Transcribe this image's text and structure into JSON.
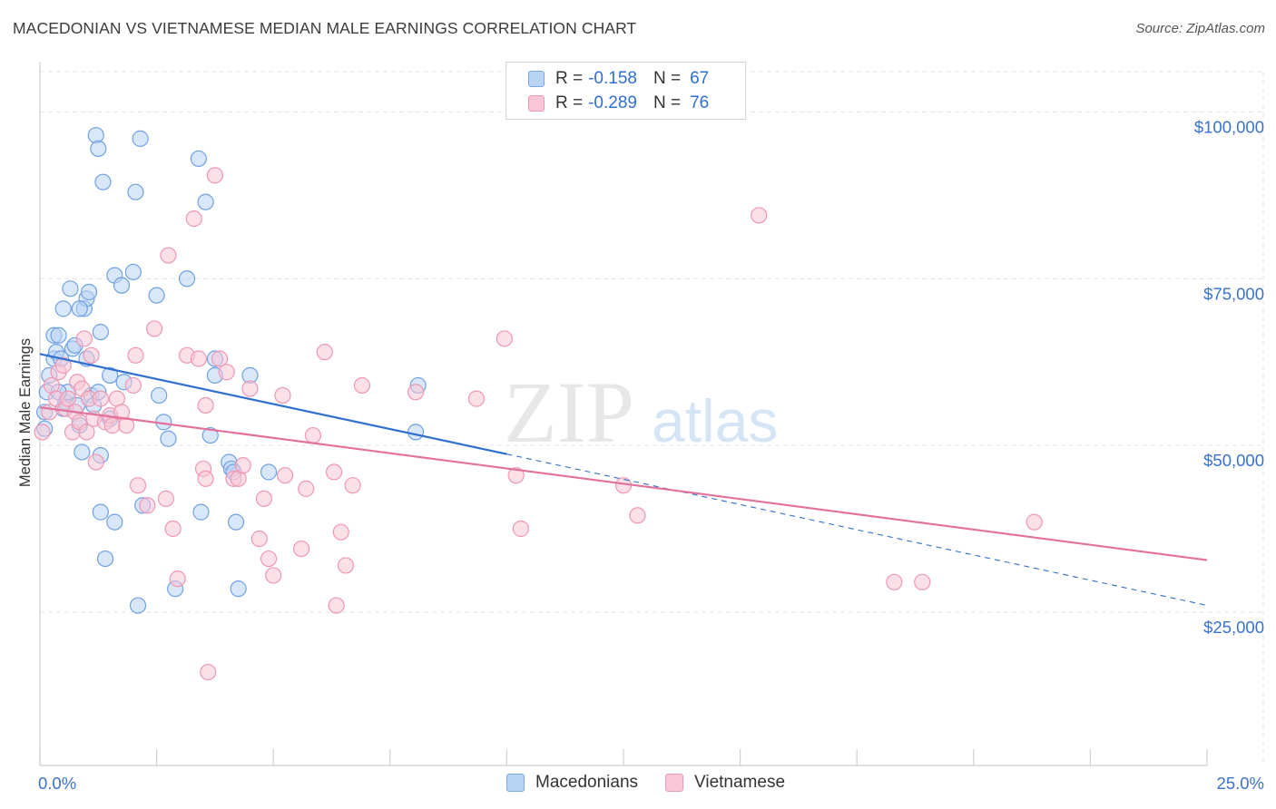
{
  "title": "MACEDONIAN VS VIETNAMESE MEDIAN MALE EARNINGS CORRELATION CHART",
  "source": "Source: ZipAtlas.com",
  "watermark": {
    "zip": "ZIP",
    "atlas": "atlas"
  },
  "legend": {
    "r_label": "R =",
    "n_label": "N =",
    "rows": [
      {
        "name": "Macedonians",
        "r": "-0.158",
        "n": "67",
        "fill": "#b9d3f5",
        "stroke": "#7aa8e6"
      },
      {
        "name": "Vietnamese",
        "r": "-0.289",
        "n": "76",
        "fill": "#f8c6d6",
        "stroke": "#ee9ab5"
      }
    ]
  },
  "colors": {
    "blue_point": "#6fa1e2",
    "pink_point": "#ee97b3",
    "blue_line": "#2f6fcf",
    "pink_line": "#e36f9a",
    "tick_text": "#3a72cc",
    "grid": "#e3e3e3"
  },
  "chart_data": {
    "type": "scatter",
    "title": "MACEDONIAN VS VIETNAMESE MEDIAN MALE EARNINGS CORRELATION CHART",
    "xlabel": "",
    "ylabel": "Median Male Earnings",
    "xlim": [
      0,
      25
    ],
    "ylim": [
      2000,
      107000
    ],
    "x_tick_labels": [
      "0.0%",
      "25.0%"
    ],
    "y_ticks": [
      25000,
      50000,
      75000,
      100000
    ],
    "y_tick_labels": [
      "$25,000",
      "$50,000",
      "$75,000",
      "$100,000"
    ],
    "series": [
      {
        "name": "Macedonians",
        "r": -0.158,
        "n": 67,
        "trend": {
          "x": [
            0,
            10
          ],
          "y": [
            63700,
            48700
          ],
          "dashed_extension": {
            "x": [
              10,
              25
            ],
            "y": [
              48700,
              26000
            ]
          }
        },
        "points": [
          [
            0.1,
            52.5
          ],
          [
            0.1,
            55.0
          ],
          [
            0.15,
            58.0
          ],
          [
            0.2,
            60.5
          ],
          [
            0.3,
            63.0
          ],
          [
            0.3,
            66.5
          ],
          [
            0.35,
            64.0
          ],
          [
            0.4,
            66.5
          ],
          [
            0.45,
            63.0
          ],
          [
            0.5,
            70.5
          ],
          [
            0.5,
            55.5
          ],
          [
            0.55,
            56.5
          ],
          [
            0.6,
            58.0
          ],
          [
            0.65,
            73.5
          ],
          [
            0.7,
            64.5
          ],
          [
            0.75,
            65.0
          ],
          [
            0.8,
            56.0
          ],
          [
            0.85,
            53.0
          ],
          [
            0.9,
            49.0
          ],
          [
            0.95,
            70.5
          ],
          [
            1.0,
            72.0
          ],
          [
            1.0,
            63.0
          ],
          [
            1.05,
            73.0
          ],
          [
            1.1,
            57.5
          ],
          [
            1.15,
            56.0
          ],
          [
            1.25,
            58.0
          ],
          [
            1.3,
            48.5
          ],
          [
            1.3,
            67.0
          ],
          [
            1.35,
            89.5
          ],
          [
            1.4,
            33.0
          ],
          [
            1.5,
            60.5
          ],
          [
            1.5,
            54.0
          ],
          [
            1.6,
            75.5
          ],
          [
            1.6,
            38.5
          ],
          [
            1.75,
            74.0
          ],
          [
            1.8,
            59.5
          ],
          [
            2.0,
            76.0
          ],
          [
            2.05,
            88.0
          ],
          [
            2.1,
            26.0
          ],
          [
            2.2,
            41.0
          ],
          [
            2.5,
            72.5
          ],
          [
            2.55,
            57.5
          ],
          [
            2.65,
            53.5
          ],
          [
            2.75,
            51.0
          ],
          [
            2.9,
            28.5
          ],
          [
            3.15,
            75.0
          ],
          [
            3.4,
            93.0
          ],
          [
            3.45,
            40.0
          ],
          [
            3.55,
            86.5
          ],
          [
            3.65,
            51.5
          ],
          [
            3.75,
            60.5
          ],
          [
            3.75,
            63.0
          ],
          [
            4.05,
            47.5
          ],
          [
            4.1,
            46.5
          ],
          [
            4.15,
            46.0
          ],
          [
            4.2,
            38.5
          ],
          [
            4.25,
            28.5
          ],
          [
            4.5,
            60.5
          ],
          [
            1.2,
            96.5
          ],
          [
            1.3,
            40.0
          ],
          [
            1.25,
            94.5
          ],
          [
            2.15,
            96.0
          ],
          [
            0.85,
            70.5
          ],
          [
            0.4,
            58.0
          ],
          [
            8.05,
            52.0
          ],
          [
            8.1,
            59.0
          ],
          [
            4.9,
            46.0
          ]
        ]
      },
      {
        "name": "Vietnamese",
        "r": -0.289,
        "n": 76,
        "trend": {
          "x": [
            0,
            25
          ],
          "y": [
            55700,
            32800
          ]
        },
        "points": [
          [
            0.05,
            52.0
          ],
          [
            0.2,
            55.0
          ],
          [
            0.25,
            59.0
          ],
          [
            0.35,
            57.0
          ],
          [
            0.4,
            61.0
          ],
          [
            0.5,
            62.0
          ],
          [
            0.55,
            55.5
          ],
          [
            0.6,
            57.0
          ],
          [
            0.7,
            52.0
          ],
          [
            0.75,
            55.0
          ],
          [
            0.8,
            59.5
          ],
          [
            0.85,
            53.5
          ],
          [
            0.9,
            58.5
          ],
          [
            0.95,
            66.0
          ],
          [
            1.0,
            52.0
          ],
          [
            1.05,
            57.0
          ],
          [
            1.1,
            63.5
          ],
          [
            1.15,
            54.0
          ],
          [
            1.2,
            47.5
          ],
          [
            1.3,
            57.0
          ],
          [
            1.4,
            53.5
          ],
          [
            1.5,
            54.5
          ],
          [
            1.55,
            53.0
          ],
          [
            1.65,
            57.0
          ],
          [
            1.75,
            55.0
          ],
          [
            1.85,
            53.0
          ],
          [
            2.0,
            59.0
          ],
          [
            2.05,
            63.5
          ],
          [
            2.1,
            44.0
          ],
          [
            2.3,
            41.0
          ],
          [
            2.45,
            67.5
          ],
          [
            2.7,
            42.0
          ],
          [
            2.75,
            78.5
          ],
          [
            2.85,
            37.5
          ],
          [
            2.95,
            30.0
          ],
          [
            3.15,
            63.5
          ],
          [
            3.3,
            84.0
          ],
          [
            3.4,
            63.0
          ],
          [
            3.5,
            46.5
          ],
          [
            3.55,
            56.0
          ],
          [
            3.6,
            16.0
          ],
          [
            3.75,
            90.5
          ],
          [
            3.85,
            63.0
          ],
          [
            4.0,
            61.0
          ],
          [
            4.15,
            45.0
          ],
          [
            4.25,
            45.0
          ],
          [
            4.35,
            47.0
          ],
          [
            4.5,
            58.5
          ],
          [
            4.7,
            36.0
          ],
          [
            4.8,
            42.0
          ],
          [
            4.9,
            33.0
          ],
          [
            5.0,
            30.5
          ],
          [
            5.2,
            57.5
          ],
          [
            5.25,
            45.5
          ],
          [
            5.6,
            34.5
          ],
          [
            5.7,
            43.5
          ],
          [
            5.85,
            51.5
          ],
          [
            6.1,
            64.0
          ],
          [
            6.3,
            46.0
          ],
          [
            6.35,
            26.0
          ],
          [
            6.45,
            37.0
          ],
          [
            6.55,
            32.0
          ],
          [
            6.7,
            44.0
          ],
          [
            6.9,
            59.0
          ],
          [
            8.05,
            58.0
          ],
          [
            9.35,
            57.0
          ],
          [
            9.95,
            66.0
          ],
          [
            10.2,
            45.5
          ],
          [
            10.3,
            37.5
          ],
          [
            12.5,
            44.0
          ],
          [
            12.8,
            39.5
          ],
          [
            15.4,
            84.5
          ],
          [
            18.3,
            29.5
          ],
          [
            18.9,
            29.5
          ],
          [
            21.3,
            38.5
          ],
          [
            3.55,
            45.0
          ]
        ]
      }
    ]
  }
}
